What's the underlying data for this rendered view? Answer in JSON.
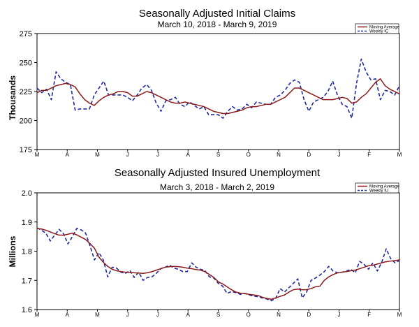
{
  "chart_data": [
    {
      "type": "line",
      "title": "Seasonally Adjusted Initial Claims",
      "subtitle": "March 10, 2018 - March 9, 2019",
      "ylabel": "Thousands",
      "ylim": [
        175,
        275
      ],
      "yticks": [
        175,
        200,
        225,
        250,
        275
      ],
      "xtick_labels": [
        "M",
        "A",
        "M",
        "J",
        "J",
        "A",
        "S",
        "O",
        "N",
        "D",
        "J",
        "F",
        "M"
      ],
      "grid": false,
      "legend_position": "top-right",
      "series": [
        {
          "name": "Moving Average",
          "color": "#8b1a1a",
          "style": "solid",
          "values": [
            224,
            226,
            226,
            228,
            230,
            231,
            232,
            231,
            229,
            223,
            218,
            215,
            213,
            217,
            220,
            222,
            223,
            225,
            225,
            224,
            221,
            221,
            223,
            225,
            224,
            222,
            220,
            218,
            216,
            215,
            215,
            216,
            215,
            214,
            213,
            212,
            210,
            208,
            207,
            206,
            206,
            207,
            208,
            209,
            211,
            212,
            212,
            213,
            214,
            214,
            216,
            218,
            220,
            224,
            228,
            228,
            226,
            224,
            222,
            220,
            218,
            218,
            218,
            219,
            220,
            219,
            215,
            216,
            220,
            223,
            228,
            233,
            236,
            230,
            227,
            225,
            223
          ]
        },
        {
          "name": "Weekly IC",
          "color": "#1f2a9c",
          "style": "dashed",
          "values": [
            228,
            224,
            227,
            218,
            242,
            236,
            233,
            231,
            209,
            210,
            210,
            210,
            222,
            228,
            234,
            222,
            222,
            222,
            222,
            220,
            217,
            222,
            228,
            231,
            226,
            215,
            208,
            217,
            218,
            220,
            214,
            212,
            216,
            213,
            210,
            212,
            205,
            205,
            205,
            202,
            208,
            212,
            209,
            210,
            214,
            211,
            216,
            215,
            214,
            214,
            220,
            222,
            226,
            232,
            235,
            233,
            218,
            208,
            216,
            218,
            220,
            225,
            234,
            222,
            214,
            212,
            202,
            232,
            253,
            242,
            235,
            236,
            218,
            226,
            225,
            222,
            230
          ]
        }
      ]
    },
    {
      "type": "line",
      "title": "Seasonally Adjusted Insured Unemployment",
      "subtitle": "March 3, 2018 - March 2, 2019",
      "ylabel": "Millions",
      "ylim": [
        1.6,
        2.0
      ],
      "yticks": [
        "1.6",
        "1.7",
        "1.8",
        "1.9",
        "2.0"
      ],
      "xtick_labels": [
        "M",
        "A",
        "M",
        "J",
        "J",
        "A",
        "S",
        "O",
        "N",
        "D",
        "J",
        "F",
        "M"
      ],
      "grid": false,
      "legend_position": "top-right",
      "series": [
        {
          "name": "Moving Average",
          "color": "#8b1a1a",
          "style": "solid",
          "values": [
            1.878,
            1.876,
            1.872,
            1.866,
            1.86,
            1.855,
            1.855,
            1.858,
            1.862,
            1.856,
            1.848,
            1.84,
            1.826,
            1.81,
            1.78,
            1.762,
            1.748,
            1.738,
            1.733,
            1.73,
            1.728,
            1.727,
            1.726,
            1.725,
            1.724,
            1.726,
            1.73,
            1.735,
            1.74,
            1.745,
            1.747,
            1.748,
            1.747,
            1.745,
            1.742,
            1.74,
            1.737,
            1.735,
            1.73,
            1.72,
            1.71,
            1.695,
            1.688,
            1.678,
            1.668,
            1.66,
            1.656,
            1.655,
            1.652,
            1.65,
            1.648,
            1.642,
            1.638,
            1.635,
            1.64,
            1.645,
            1.65,
            1.66,
            1.668,
            1.67,
            1.668,
            1.668,
            1.672,
            1.678,
            1.68,
            1.7,
            1.712,
            1.72,
            1.726,
            1.728,
            1.73,
            1.733,
            1.735,
            1.74,
            1.745,
            1.75,
            1.752,
            1.756,
            1.76,
            1.764,
            1.766,
            1.768,
            1.77
          ]
        },
        {
          "name": "Weekly IU",
          "color": "#1f2a9c",
          "style": "dashed",
          "values": [
            1.88,
            1.872,
            1.862,
            1.835,
            1.855,
            1.875,
            1.86,
            1.825,
            1.85,
            1.878,
            1.873,
            1.862,
            1.818,
            1.77,
            1.795,
            1.77,
            1.712,
            1.745,
            1.742,
            1.728,
            1.724,
            1.734,
            1.71,
            1.728,
            1.7,
            1.71,
            1.712,
            1.724,
            1.74,
            1.745,
            1.752,
            1.742,
            1.738,
            1.73,
            1.73,
            1.76,
            1.745,
            1.738,
            1.734,
            1.712,
            1.708,
            1.69,
            1.68,
            1.655,
            1.662,
            1.658,
            1.652,
            1.655,
            1.65,
            1.646,
            1.644,
            1.64,
            1.636,
            1.63,
            1.638,
            1.672,
            1.66,
            1.675,
            1.69,
            1.705,
            1.64,
            1.66,
            1.7,
            1.708,
            1.718,
            1.73,
            1.748,
            1.732,
            1.726,
            1.728,
            1.732,
            1.738,
            1.726,
            1.765,
            1.755,
            1.738,
            1.76,
            1.732,
            1.762,
            1.808,
            1.775,
            1.76,
            1.768
          ]
        }
      ]
    }
  ]
}
